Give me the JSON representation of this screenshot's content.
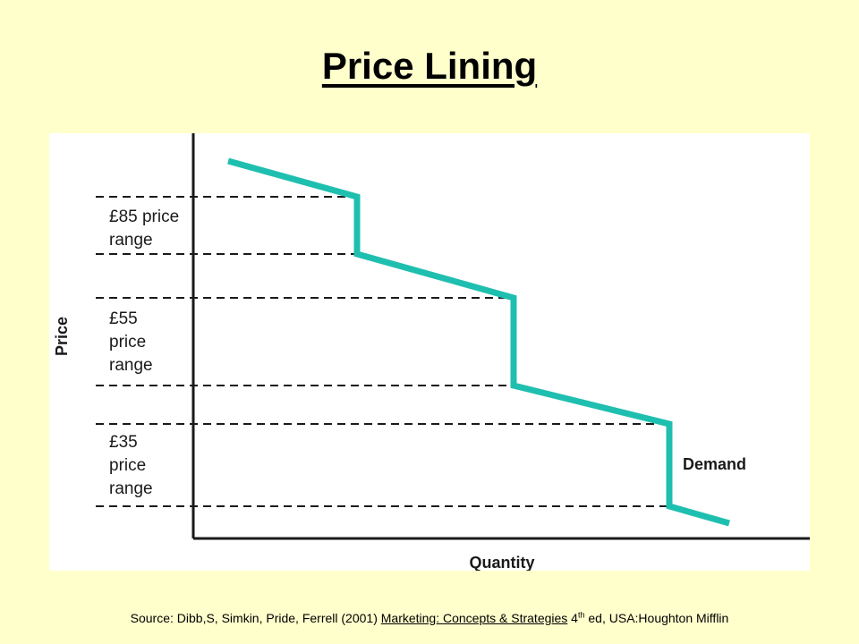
{
  "slide": {
    "title": "Price Lining"
  },
  "diagram": {
    "y_axis_label": "Price",
    "x_axis_label": "Quantity",
    "curve_label": "Demand",
    "curve_color": "#1fbfb0",
    "price_ranges": [
      {
        "lines": [
          "£85 price",
          "range"
        ]
      },
      {
        "lines": [
          "£55",
          "price",
          "range"
        ]
      },
      {
        "lines": [
          "£35",
          "price",
          "range"
        ]
      }
    ]
  },
  "source": {
    "prefix": "Source: Dibb,S, Simkin, Pride, Ferrell (2001) ",
    "book_title": "Marketing: Concepts & Strategies",
    "edition_number": " 4",
    "edition_sup": "th",
    "suffix": " ed, USA:Houghton Mifflin"
  }
}
